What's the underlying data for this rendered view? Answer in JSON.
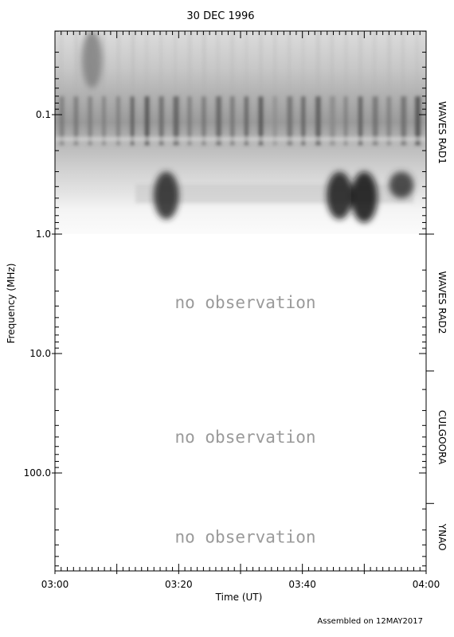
{
  "chart_data": {
    "type": "heatmap",
    "title": "30 DEC 1996",
    "xlabel": "Time (UT)",
    "ylabel": "Frequency (MHz)",
    "yscale": "log",
    "xlim": [
      "03:00",
      "04:00"
    ],
    "ylim_mhz": [
      0.02,
      800
    ],
    "x_tick_labels": [
      "03:00",
      "03:20",
      "03:40",
      "04:00"
    ],
    "y_tick_labels": [
      "0.1",
      "1.0",
      "10.0",
      "100.0"
    ],
    "y_tick_values": [
      0.1,
      1.0,
      10.0,
      100.0
    ],
    "colormap": "grayscale-inverted",
    "instrument_bands": [
      {
        "name": "WAVES RAD1",
        "fmin_mhz": 0.02,
        "fmax_mhz": 1.0,
        "observed": true
      },
      {
        "name": "WAVES RAD2",
        "fmin_mhz": 1.0,
        "fmax_mhz": 14.0,
        "observed": false,
        "note": "no observation"
      },
      {
        "name": "CULGOORA",
        "fmin_mhz": 14.0,
        "fmax_mhz": 180.0,
        "observed": false,
        "note": "no observation"
      },
      {
        "name": "YNAO",
        "fmin_mhz": 180.0,
        "fmax_mhz": 800.0,
        "observed": false,
        "note": "no observation"
      }
    ],
    "burst_features": [
      {
        "time": "03:06",
        "fmin_mhz": 0.02,
        "fmax_mhz": 0.06,
        "intensity": 0.5
      },
      {
        "time": "03:18",
        "fmin_mhz": 0.3,
        "fmax_mhz": 0.75,
        "intensity": 0.85
      },
      {
        "time": "03:46",
        "fmin_mhz": 0.3,
        "fmax_mhz": 0.75,
        "intensity": 0.9
      },
      {
        "time": "03:50",
        "fmin_mhz": 0.3,
        "fmax_mhz": 0.8,
        "intensity": 0.95
      },
      {
        "time": "03:56",
        "fmin_mhz": 0.3,
        "fmax_mhz": 0.5,
        "intensity": 0.8
      }
    ]
  },
  "footer": "Assembled on 12MAY2017"
}
